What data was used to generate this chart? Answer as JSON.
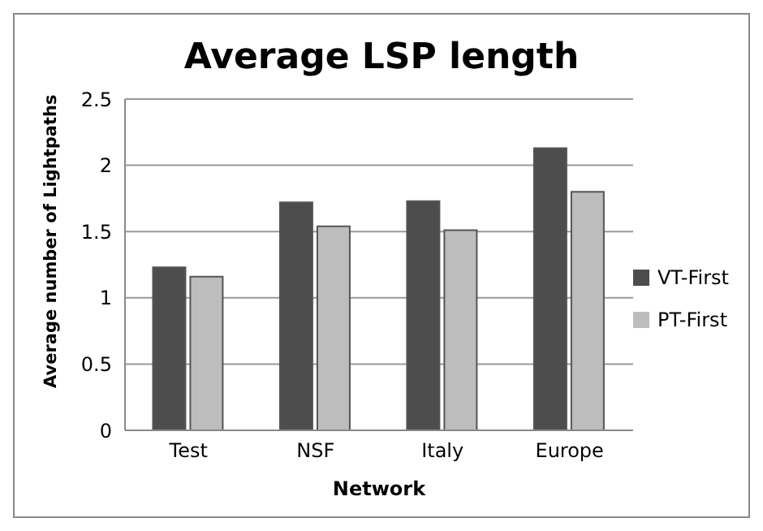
{
  "chart_data": {
    "type": "bar",
    "title": "Average LSP length",
    "xlabel": "Network",
    "ylabel": "Average number of Lightpaths",
    "categories": [
      "Test",
      "NSF",
      "Italy",
      "Europe"
    ],
    "series": [
      {
        "name": "VT-First",
        "color": "#4d4d4d",
        "values": [
          1.23,
          1.72,
          1.73,
          2.13
        ]
      },
      {
        "name": "PT-First",
        "color": "#bdbdbd",
        "values": [
          1.16,
          1.54,
          1.51,
          1.8
        ]
      }
    ],
    "ylim": [
      0,
      2.5
    ],
    "yticks": [
      0,
      0.5,
      1,
      1.5,
      2,
      2.5
    ],
    "grid": "y",
    "legend": "right"
  }
}
